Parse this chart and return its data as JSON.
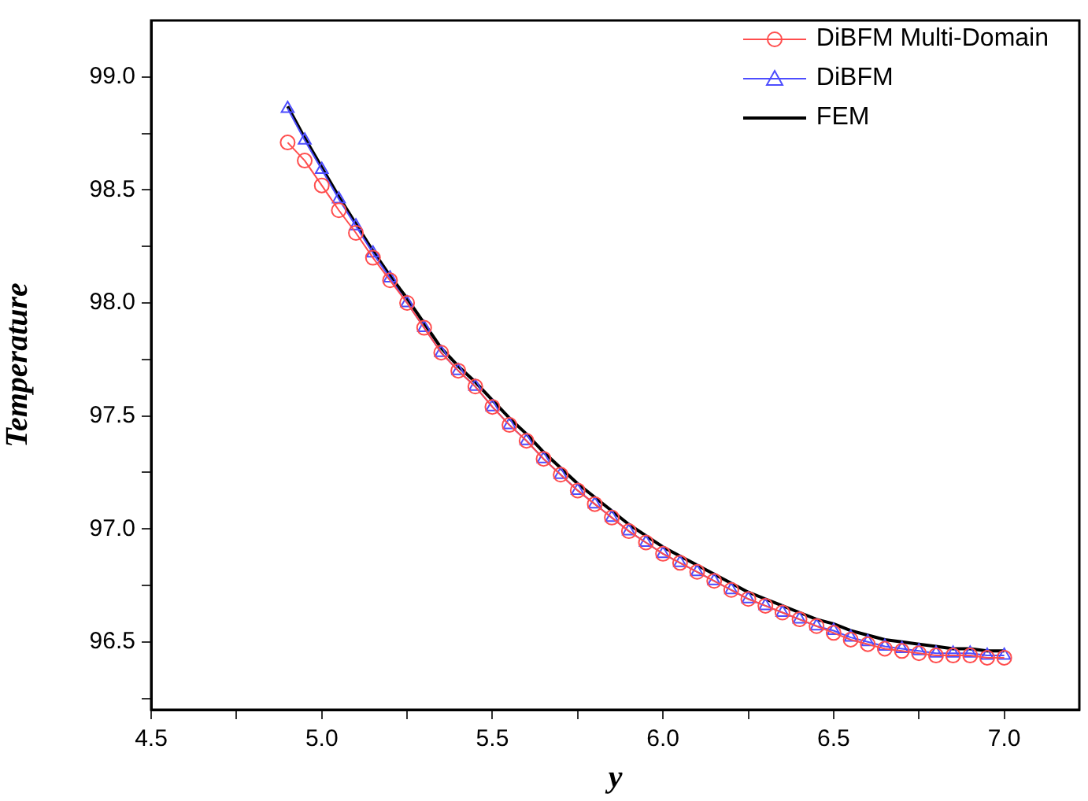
{
  "chart_data": {
    "type": "line",
    "xlabel": "y",
    "ylabel": "Temperature",
    "x": [
      4.9,
      4.95,
      5.0,
      5.05,
      5.1,
      5.15,
      5.2,
      5.25,
      5.3,
      5.35,
      5.4,
      5.45,
      5.5,
      5.55,
      5.6,
      5.65,
      5.7,
      5.75,
      5.8,
      5.85,
      5.9,
      5.95,
      6.0,
      6.05,
      6.1,
      6.15,
      6.2,
      6.25,
      6.3,
      6.35,
      6.4,
      6.45,
      6.5,
      6.55,
      6.6,
      6.65,
      6.7,
      6.75,
      6.8,
      6.85,
      6.9,
      6.95,
      7.0
    ],
    "series": [
      {
        "name": "DiBFM Multi-Domain",
        "color": "#ff4d4d",
        "marker": "circle",
        "line_style": "solid",
        "values": [
          98.71,
          98.63,
          98.52,
          98.41,
          98.31,
          98.2,
          98.1,
          98.0,
          97.89,
          97.78,
          97.7,
          97.63,
          97.54,
          97.46,
          97.39,
          97.31,
          97.24,
          97.17,
          97.11,
          97.05,
          96.99,
          96.94,
          96.89,
          96.85,
          96.81,
          96.77,
          96.73,
          96.69,
          96.66,
          96.63,
          96.6,
          96.57,
          96.54,
          96.51,
          96.49,
          96.47,
          96.46,
          96.45,
          96.44,
          96.44,
          96.44,
          96.43,
          96.43
        ]
      },
      {
        "name": "DiBFM",
        "color": "#4d4dff",
        "marker": "triangle",
        "line_style": "solid",
        "values": [
          98.86,
          98.72,
          98.59,
          98.46,
          98.34,
          98.22,
          98.11,
          98.0,
          97.89,
          97.78,
          97.7,
          97.63,
          97.54,
          97.46,
          97.39,
          97.31,
          97.24,
          97.17,
          97.11,
          97.05,
          96.99,
          96.94,
          96.89,
          96.85,
          96.81,
          96.77,
          96.73,
          96.69,
          96.66,
          96.63,
          96.6,
          96.57,
          96.55,
          96.52,
          96.5,
          96.48,
          96.47,
          96.46,
          96.45,
          96.45,
          96.45,
          96.44,
          96.44
        ]
      },
      {
        "name": "FEM",
        "color": "#000000",
        "marker": "none",
        "line_style": "solid",
        "values": [
          98.87,
          98.73,
          98.6,
          98.47,
          98.35,
          98.23,
          98.12,
          98.02,
          97.91,
          97.8,
          97.72,
          97.65,
          97.57,
          97.49,
          97.42,
          97.34,
          97.27,
          97.2,
          97.14,
          97.08,
          97.02,
          96.97,
          96.92,
          96.88,
          96.84,
          96.8,
          96.76,
          96.72,
          96.69,
          96.66,
          96.63,
          96.6,
          96.58,
          96.55,
          96.53,
          96.51,
          96.5,
          96.49,
          96.48,
          96.47,
          96.47,
          96.46,
          96.46
        ]
      }
    ],
    "xlim": [
      4.5,
      7.22
    ],
    "xticks": [
      4.5,
      {
        "value": 4.75,
        "label": null
      },
      {
        "value": 5,
        "label": "5.0"
      },
      {
        "value": 5.25,
        "label": null
      },
      5.5,
      {
        "value": 5.75,
        "label": null
      },
      {
        "value": 6,
        "label": "6.0"
      },
      {
        "value": 6.25,
        "label": null
      },
      6.5,
      {
        "value": 6.75,
        "label": null
      },
      {
        "value": 7,
        "label": "7.0"
      }
    ],
    "ylim": [
      96.2,
      99.25
    ],
    "yticks": [
      {
        "value": 96.25,
        "label": null
      },
      96.5,
      {
        "value": 96.75,
        "label": null
      },
      {
        "value": 97,
        "label": "97.0"
      },
      {
        "value": 97.25,
        "label": null
      },
      97.5,
      {
        "value": 97.75,
        "label": null
      },
      {
        "value": 98,
        "label": "98.0"
      },
      {
        "value": 98.25,
        "label": null
      },
      98.5,
      {
        "value": 98.75,
        "label": null
      },
      {
        "value": 99,
        "label": "99.0"
      }
    ],
    "grid": false,
    "legend": "top right"
  }
}
